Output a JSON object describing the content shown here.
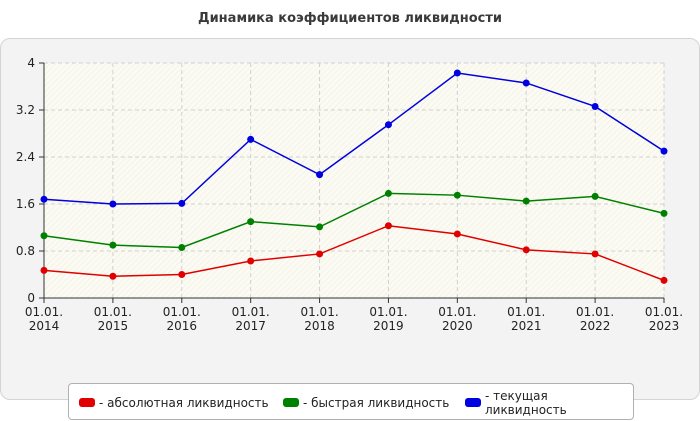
{
  "chart_data": {
    "type": "line",
    "title": "Динамика коэффициентов ликвидности",
    "xlabel": "",
    "ylabel": "",
    "x": [
      "01.01.\n2014",
      "01.01.\n2015",
      "01.01.\n2016",
      "01.01.\n2017",
      "01.01.\n2018",
      "01.01.\n2019",
      "01.01.\n2020",
      "01.01.\n2021",
      "01.01.\n2022",
      "01.01.\n2023"
    ],
    "x_lines": [
      [
        "01.01.",
        "2014"
      ],
      [
        "01.01.",
        "2015"
      ],
      [
        "01.01.",
        "2016"
      ],
      [
        "01.01.",
        "2017"
      ],
      [
        "01.01.",
        "2018"
      ],
      [
        "01.01.",
        "2019"
      ],
      [
        "01.01.",
        "2020"
      ],
      [
        "01.01.",
        "2021"
      ],
      [
        "01.01.",
        "2022"
      ],
      [
        "01.01.",
        "2023"
      ]
    ],
    "yticks": [
      "0",
      "0.8",
      "1.6",
      "2.4",
      "3.2",
      "4"
    ],
    "ylim": [
      0,
      4
    ],
    "grid": true,
    "legend_position": "bottom",
    "series": [
      {
        "name": "- абсолютная ликвидность",
        "color": "#e00000",
        "values": [
          0.47,
          0.37,
          0.4,
          0.63,
          0.75,
          1.23,
          1.09,
          0.82,
          0.75,
          0.3
        ]
      },
      {
        "name": "- быстрая ликвидность",
        "color": "#008000",
        "values": [
          1.06,
          0.9,
          0.86,
          1.3,
          1.21,
          1.78,
          1.75,
          1.65,
          1.73,
          1.44
        ]
      },
      {
        "name": "- текущая ликвидность",
        "color": "#0000e0",
        "values": [
          1.68,
          1.6,
          1.61,
          2.7,
          2.1,
          2.95,
          3.83,
          3.66,
          3.26,
          2.5
        ]
      }
    ]
  }
}
